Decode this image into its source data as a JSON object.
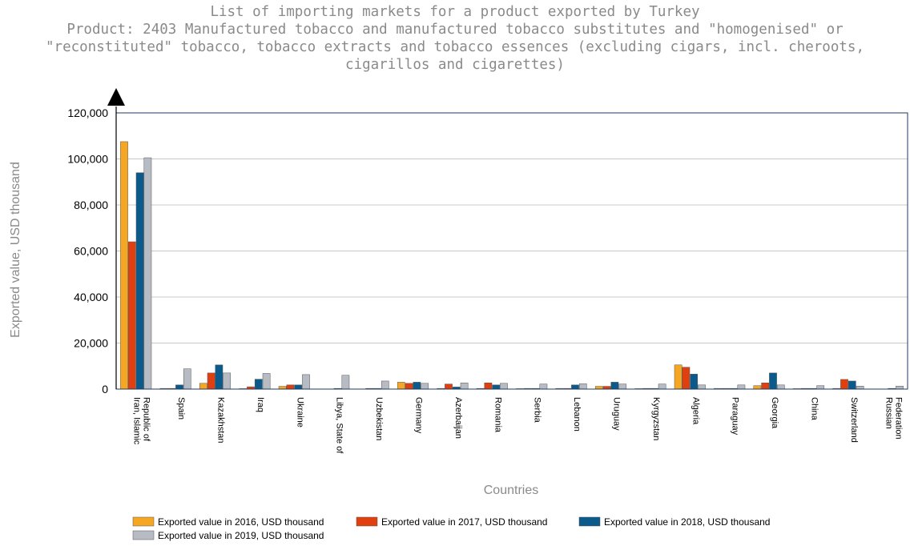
{
  "title_lines": [
    "List of importing markets for a product exported by Turkey",
    "Product: 2403 Manufactured tobacco and manufactured tobacco substitutes and \"homogenised\" or",
    "\"reconstituted\" tobacco, tobacco extracts and tobacco essences (excluding cigars, incl. cheroots,",
    "cigarillos and cigarettes)"
  ],
  "chart_data": {
    "type": "bar",
    "xlabel": "Countries",
    "ylabel": "Exported value, USD thousand",
    "ylim": [
      0,
      120000
    ],
    "yticks": [
      0,
      20000,
      40000,
      60000,
      80000,
      100000,
      120000
    ],
    "ytick_labels": [
      "0",
      "20,000",
      "40,000",
      "60,000",
      "80,000",
      "100,000",
      "120,000"
    ],
    "grid": true,
    "legend_position": "bottom",
    "categories": [
      [
        "Iran, Islamic",
        "Republic of"
      ],
      [
        "Spain"
      ],
      [
        "Kazakhstan"
      ],
      [
        "Iraq"
      ],
      [
        "Ukraine"
      ],
      [
        "Libya, State of"
      ],
      [
        "Uzbekistan"
      ],
      [
        "Germany"
      ],
      [
        "Azerbaijan"
      ],
      [
        "Romania"
      ],
      [
        "Serbia"
      ],
      [
        "Lebanon"
      ],
      [
        "Uruguay"
      ],
      [
        "Kyrgyzstan"
      ],
      [
        "Algeria"
      ],
      [
        "Paraguay"
      ],
      [
        "Georgia"
      ],
      [
        "China"
      ],
      [
        "Switzerland"
      ],
      [
        "Russian",
        "Federation"
      ]
    ],
    "series": [
      {
        "name": "Exported value in 2016, USD thousand",
        "color": "#f5a623",
        "values": [
          107500,
          300,
          2500,
          200,
          1200,
          0,
          0,
          3000,
          300,
          300,
          200,
          300,
          1200,
          200,
          10500,
          300,
          1500,
          200,
          300,
          0
        ]
      },
      {
        "name": "Exported value in 2017, USD thousand",
        "color": "#e0400f",
        "values": [
          64000,
          300,
          7000,
          1000,
          1800,
          0,
          300,
          2500,
          2200,
          2700,
          300,
          300,
          1200,
          300,
          9500,
          300,
          2700,
          300,
          4200,
          0
        ]
      },
      {
        "name": "Exported value in 2018, USD thousand",
        "color": "#0a5a8c",
        "values": [
          94000,
          1800,
          10500,
          4300,
          1800,
          300,
          300,
          3000,
          900,
          1800,
          300,
          1800,
          3000,
          300,
          6500,
          300,
          7000,
          300,
          3500,
          300
        ]
      },
      {
        "name": "Exported value in 2019, USD thousand",
        "color": "#b7bcc4",
        "values": [
          100500,
          8800,
          7000,
          6800,
          6300,
          6000,
          3500,
          2500,
          2700,
          2500,
          2200,
          2300,
          2200,
          2200,
          1800,
          1800,
          1800,
          1500,
          1300,
          1300
        ]
      }
    ]
  }
}
